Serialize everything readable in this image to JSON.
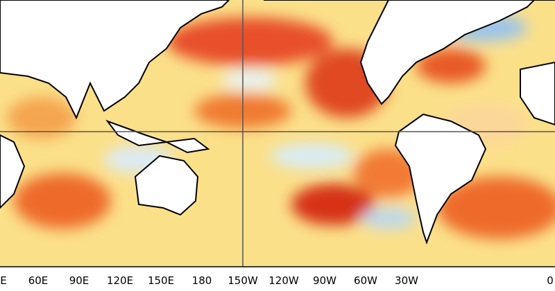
{
  "map": {
    "x_axis": {
      "labels": [
        "E",
        "60E",
        "90E",
        "120E",
        "150E",
        "180",
        "150W",
        "120W",
        "90W",
        "60W",
        "30W",
        "0"
      ]
    }
  }
}
